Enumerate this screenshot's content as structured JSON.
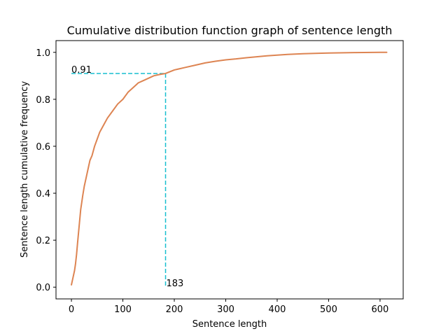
{
  "chart_data": {
    "type": "line",
    "title": "Cumulative distribution function graph of sentence length",
    "xlabel": "Sentence length",
    "ylabel": "Sentence length cumulative frequency",
    "xlim": [
      -30,
      645
    ],
    "ylim": [
      -0.05,
      1.05
    ],
    "xticks": [
      0,
      100,
      200,
      300,
      400,
      500,
      600
    ],
    "yticks": [
      0.0,
      0.2,
      0.4,
      0.6,
      0.8,
      1.0
    ],
    "grid": false,
    "legend": "none",
    "series": [
      {
        "color": "#dd8452",
        "x": [
          0,
          2,
          4,
          6,
          8,
          10,
          12,
          15,
          18,
          20,
          22,
          25,
          28,
          30,
          33,
          36,
          40,
          45,
          50,
          55,
          60,
          65,
          70,
          80,
          90,
          100,
          110,
          120,
          130,
          140,
          150,
          160,
          170,
          183,
          200,
          220,
          240,
          260,
          280,
          300,
          320,
          340,
          360,
          380,
          400,
          420,
          450,
          480,
          500,
          550,
          600,
          613
        ],
        "values": [
          0.01,
          0.03,
          0.05,
          0.07,
          0.1,
          0.14,
          0.19,
          0.26,
          0.33,
          0.36,
          0.39,
          0.43,
          0.46,
          0.48,
          0.51,
          0.54,
          0.56,
          0.6,
          0.63,
          0.66,
          0.68,
          0.7,
          0.72,
          0.75,
          0.78,
          0.8,
          0.83,
          0.85,
          0.87,
          0.88,
          0.89,
          0.9,
          0.905,
          0.91,
          0.925,
          0.935,
          0.945,
          0.955,
          0.962,
          0.968,
          0.972,
          0.977,
          0.981,
          0.985,
          0.988,
          0.991,
          0.994,
          0.996,
          0.997,
          0.999,
          1.0,
          1.0
        ]
      }
    ],
    "reference": {
      "color": "#17becf",
      "x": 183,
      "y": 0.91,
      "x_label": "183",
      "y_label": "0.91"
    }
  }
}
